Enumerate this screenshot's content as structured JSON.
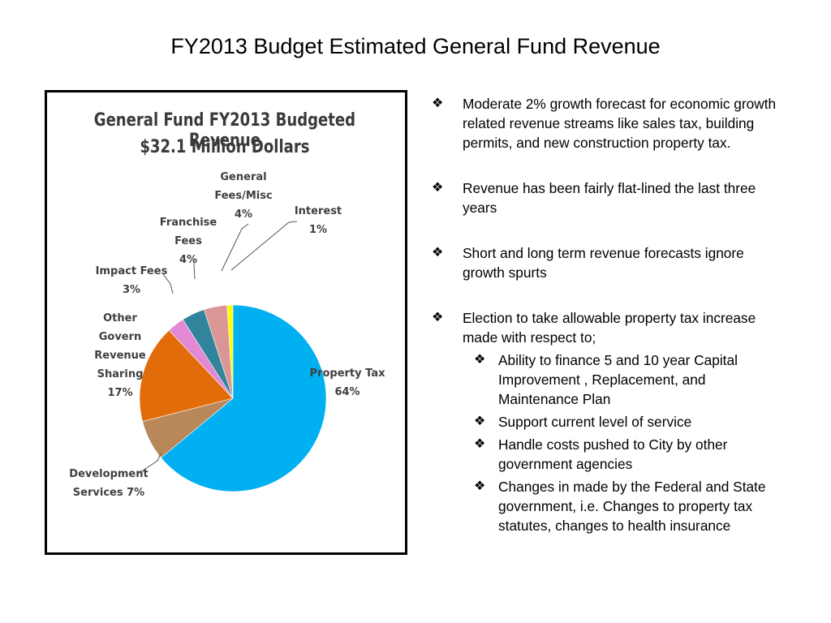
{
  "slide": {
    "title": "FY2013 Budget Estimated  General Fund Revenue"
  },
  "chart_data": {
    "type": "pie",
    "title": "General Fund FY2013 Budgeted Revenue",
    "subtitle": "$32.1 Million Dollars",
    "slices": [
      {
        "name": "Property Tax",
        "label_lines": [
          "Property Tax",
          "64%"
        ],
        "value": 64,
        "color": "#00b0f0"
      },
      {
        "name": "Development Services",
        "label_lines": [
          "Development",
          "Services 7%"
        ],
        "value": 7,
        "color": "#b8875a"
      },
      {
        "name": "Other Govern Revenue Sharing",
        "label_lines": [
          "Other",
          "Govern",
          "Revenue",
          "Sharing",
          "17%"
        ],
        "value": 17,
        "color": "#e36c0a"
      },
      {
        "name": "Impact Fees",
        "label_lines": [
          "Impact Fees",
          "3%"
        ],
        "value": 3,
        "color": "#e388d2"
      },
      {
        "name": "Franchise Fees",
        "label_lines": [
          "Franchise",
          "Fees",
          "4%"
        ],
        "value": 4,
        "color": "#31849b"
      },
      {
        "name": "General Fees/Misc",
        "label_lines": [
          "General",
          "Fees/Misc",
          "4%"
        ],
        "value": 4,
        "color": "#d99694"
      },
      {
        "name": "Interest",
        "label_lines": [
          "Interest",
          "1%"
        ],
        "value": 1,
        "color": "#ffff00"
      }
    ]
  },
  "bullets": [
    {
      "text": "Moderate 2% growth forecast for economic growth related revenue streams like sales tax, building permits, and new construction property tax.",
      "sub": []
    },
    {
      "text": "Revenue has been fairly flat-lined the last three years",
      "sub": []
    },
    {
      "text": "Short and long term revenue forecasts ignore growth spurts",
      "sub": []
    },
    {
      "text": "Election to take allowable property tax increase made with respect to;",
      "sub": [
        "Ability to finance  5 and 10 year Capital Improvement , Replacement, and Maintenance Plan",
        "Support  current level of service",
        "Handle costs pushed to City by other government agencies",
        "Changes in made by the Federal and State government, i.e.  Changes to property tax statutes, changes to health insurance"
      ]
    }
  ],
  "bullet_symbol": "❖"
}
